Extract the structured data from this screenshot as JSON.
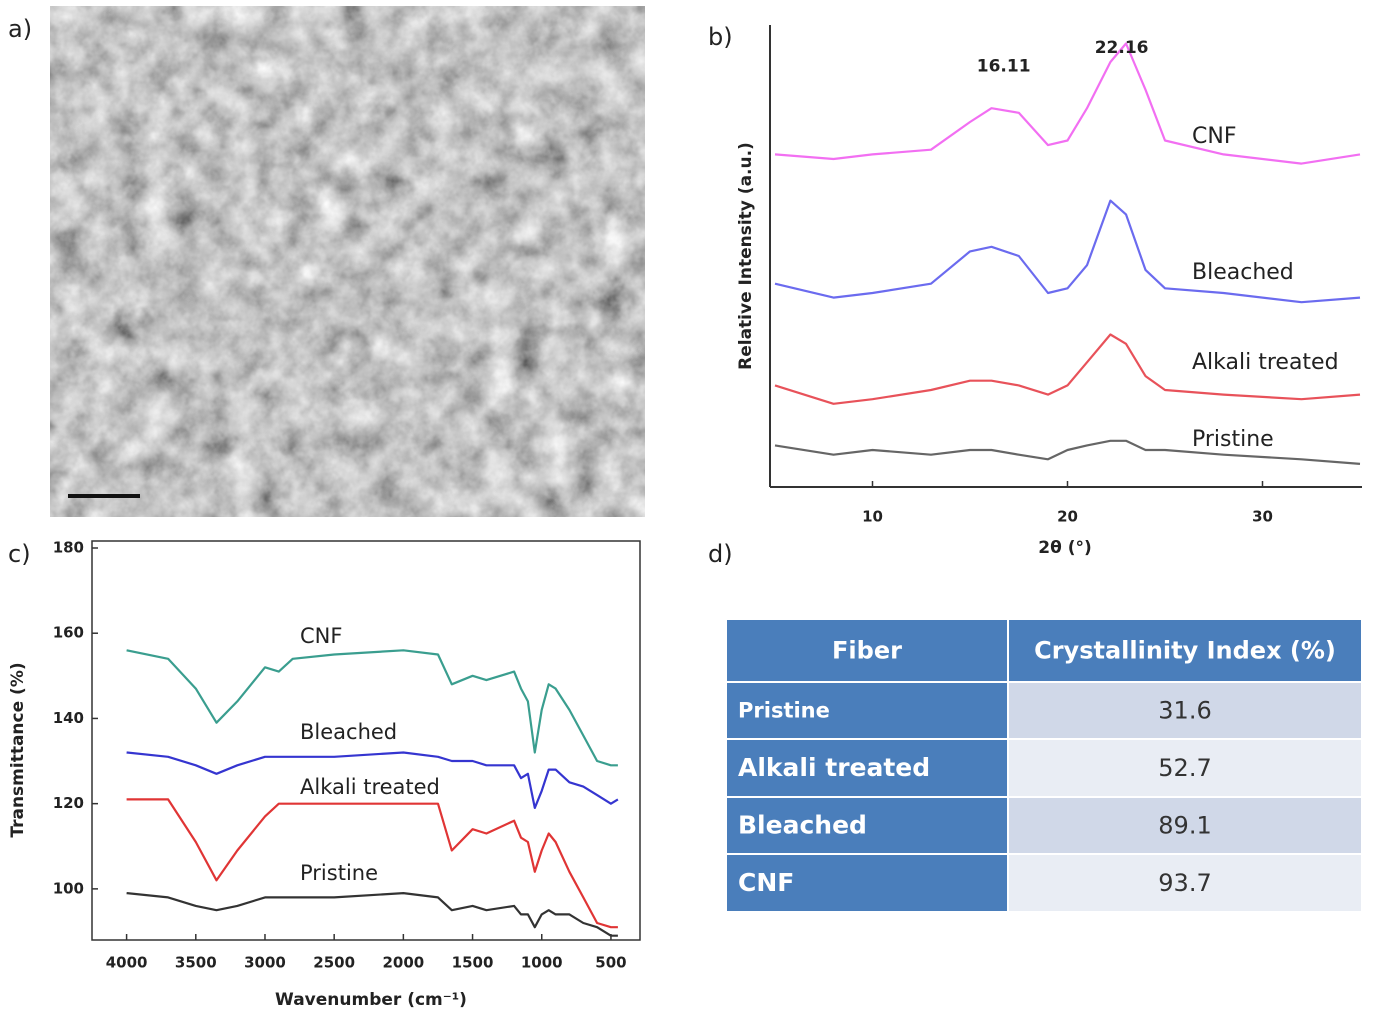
{
  "panel_labels": [
    "a)",
    "b)",
    "c)",
    "d)"
  ],
  "chart_data": [
    {
      "type": "line",
      "x_label": "2θ (°)",
      "y_label": "Relative Intensity (a.u.)",
      "x": [
        5,
        8,
        10,
        13,
        15,
        16.1,
        17.5,
        19,
        20,
        21,
        22.2,
        23,
        24,
        25,
        28,
        32,
        35
      ],
      "xlim": [
        5,
        35
      ],
      "xticks": [
        10,
        20,
        30
      ],
      "ylim": [
        0,
        100
      ],
      "annotations": [
        {
          "text": "16.11",
          "x": 16.11,
          "y": 91
        },
        {
          "text": "22.16",
          "x": 22.16,
          "y": 95
        }
      ],
      "series": [
        {
          "name": "CNF",
          "color": "#f26ff2",
          "values": [
            72,
            71,
            72,
            73,
            79,
            82,
            81,
            74,
            75,
            82,
            92,
            96,
            86,
            75,
            72,
            70,
            72
          ]
        },
        {
          "name": "Bleached",
          "color": "#6b6bef",
          "values": [
            44,
            41,
            42,
            44,
            51,
            52,
            50,
            42,
            43,
            48,
            62,
            59,
            47,
            43,
            42,
            40,
            41
          ]
        },
        {
          "name": "Alkali treated",
          "color": "#e8525a",
          "values": [
            22,
            18,
            19,
            21,
            23,
            23,
            22,
            20,
            22,
            27,
            33,
            31,
            24,
            21,
            20,
            19,
            20
          ]
        },
        {
          "name": "Pristine",
          "color": "#666666",
          "values": [
            9,
            7,
            8,
            7,
            8,
            8,
            7,
            6,
            8,
            9,
            10,
            10,
            8,
            8,
            7,
            6,
            5
          ]
        }
      ]
    },
    {
      "type": "line",
      "x_label": "Wavenumber (cm⁻¹)",
      "y_label": "Transmittance (%)",
      "x": [
        4000,
        3700,
        3500,
        3350,
        3200,
        3000,
        2900,
        2800,
        2500,
        2000,
        1750,
        1650,
        1500,
        1400,
        1200,
        1150,
        1100,
        1050,
        1000,
        950,
        900,
        800,
        700,
        600,
        500,
        450
      ],
      "xlim": [
        4250,
        290
      ],
      "xticks": [
        4000,
        3500,
        3000,
        2500,
        2000,
        1500,
        1000,
        500
      ],
      "ylim": [
        88,
        180
      ],
      "yticks": [
        100,
        120,
        140,
        160,
        180
      ],
      "series": [
        {
          "name": "CNF",
          "color": "#3a9e8f",
          "values": [
            156,
            154,
            147,
            139,
            144,
            152,
            151,
            154,
            155,
            156,
            155,
            148,
            150,
            149,
            151,
            147,
            144,
            132,
            142,
            148,
            147,
            142,
            136,
            130,
            129,
            129
          ]
        },
        {
          "name": "Bleached",
          "color": "#3535d0",
          "values": [
            132,
            131,
            129,
            127,
            129,
            131,
            131,
            131,
            131,
            132,
            131,
            130,
            130,
            129,
            129,
            126,
            127,
            119,
            123,
            128,
            128,
            125,
            124,
            122,
            120,
            121
          ]
        },
        {
          "name": "Alkali treated",
          "color": "#e03535",
          "values": [
            121,
            121,
            111,
            102,
            109,
            117,
            120,
            120,
            120,
            120,
            120,
            109,
            114,
            113,
            116,
            112,
            111,
            104,
            109,
            113,
            111,
            104,
            98,
            92,
            91,
            91
          ]
        },
        {
          "name": "Pristine",
          "color": "#333333",
          "values": [
            99,
            98,
            96,
            95,
            96,
            98,
            98,
            98,
            98,
            99,
            98,
            95,
            96,
            95,
            96,
            94,
            94,
            91,
            94,
            95,
            94,
            94,
            92,
            91,
            89,
            89
          ]
        }
      ]
    }
  ],
  "table": {
    "header": [
      "Fiber",
      "Crystallinity Index (%)"
    ],
    "rows": [
      [
        "Pristine",
        31.6
      ],
      [
        "Alkali treated",
        52.7
      ],
      [
        "Bleached",
        89.1
      ],
      [
        "CNF",
        93.7
      ]
    ]
  }
}
